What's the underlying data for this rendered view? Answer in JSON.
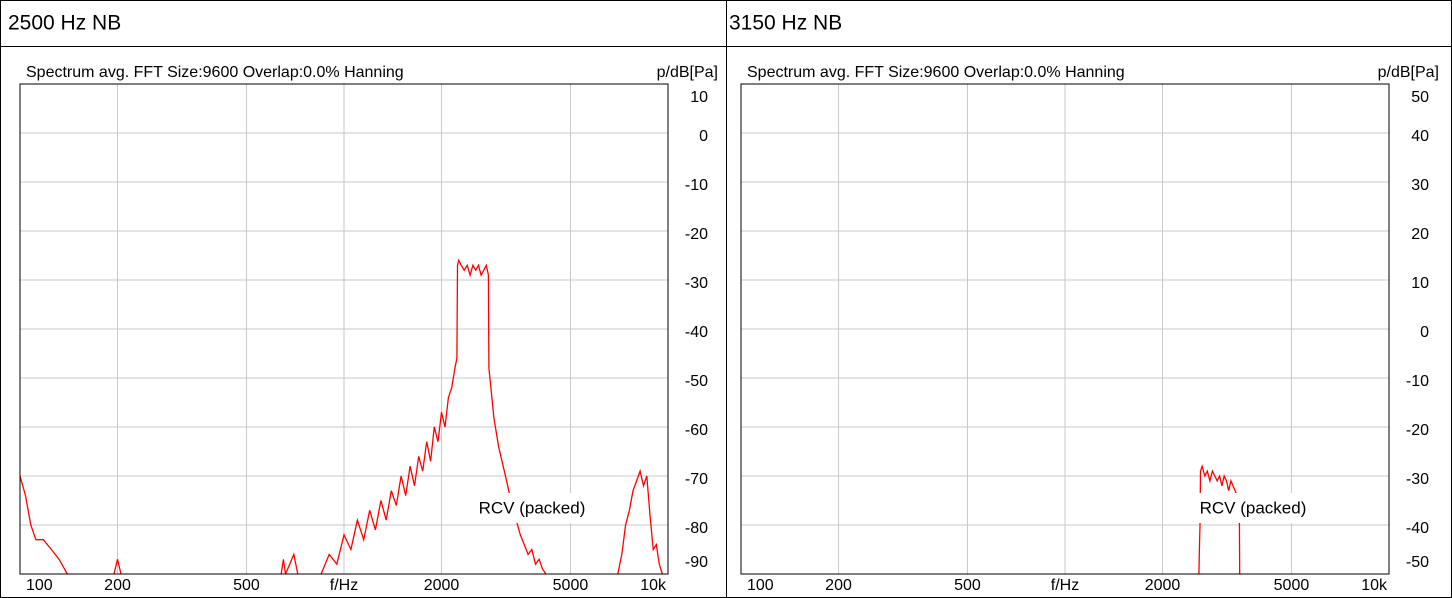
{
  "chart_data": [
    {
      "type": "line",
      "title": "2500 Hz NB",
      "subtitle": "Spectrum avg.  FFT Size:9600  Overlap:0.0%  Hanning",
      "y_label": "p/dB[Pa]",
      "log_x": true,
      "grid": true,
      "xlim": [
        100,
        10000
      ],
      "ylim": [
        -90,
        10
      ],
      "xticks": [
        100,
        200,
        500,
        {
          "value": 1000,
          "label": "f/Hz"
        },
        2000,
        5000,
        {
          "value": 10000,
          "label": "10k"
        }
      ],
      "yticks": [
        10,
        0,
        -10,
        -20,
        -30,
        -40,
        -50,
        -60,
        -70,
        -80,
        -90
      ],
      "x": [
        100,
        104,
        108,
        112,
        118,
        125,
        132,
        140,
        170,
        195,
        200,
        205,
        300,
        640,
        650,
        660,
        680,
        700,
        720,
        780,
        850,
        900,
        950,
        1000,
        1050,
        1100,
        1150,
        1200,
        1250,
        1300,
        1350,
        1400,
        1450,
        1500,
        1550,
        1600,
        1650,
        1700,
        1750,
        1800,
        1850,
        1900,
        1950,
        2000,
        2050,
        2100,
        2150,
        2200,
        2230,
        2240,
        2260,
        2300,
        2350,
        2400,
        2450,
        2500,
        2550,
        2600,
        2650,
        2700,
        2750,
        2790,
        2800,
        2850,
        2900,
        2950,
        3000,
        3100,
        3200,
        3300,
        3400,
        3500,
        3600,
        3700,
        3800,
        3900,
        4000,
        4100,
        4200,
        5000,
        7000,
        7200,
        7400,
        7600,
        7800,
        8000,
        8200,
        8400,
        8600,
        8800,
        9000,
        9200,
        9400,
        9600
      ],
      "series": [
        {
          "name": "RCV (packed)",
          "color": "#ff0000",
          "values": [
            -70,
            -74,
            -80,
            -83,
            -83,
            -85,
            -87,
            -90,
            null,
            -90,
            -87,
            -90,
            null,
            -90,
            -87,
            -90,
            -88,
            -86,
            -90,
            null,
            -90,
            -86,
            -88,
            -82,
            -85,
            -79,
            -83,
            -77,
            -81,
            -75,
            -79,
            -73,
            -76,
            -70,
            -74,
            -68,
            -72,
            -66,
            -69,
            -63,
            -67,
            -60,
            -63,
            -57,
            -60,
            -54,
            -52,
            -48,
            -46,
            -27,
            -26,
            -27,
            -28,
            -27,
            -29,
            -27,
            -28,
            -27,
            -29,
            -28,
            -27,
            -29,
            -48,
            -53,
            -58,
            -61,
            -64,
            -68,
            -72,
            -76,
            -79,
            -82,
            -84,
            -86,
            -85,
            -88,
            -87,
            -89,
            -90,
            null,
            -90,
            -86,
            -80,
            -77,
            -73,
            -71,
            -69,
            -72,
            -70,
            -78,
            -85,
            -84,
            -88,
            -90
          ]
        }
      ]
    },
    {
      "type": "line",
      "title": "3150 Hz NB",
      "subtitle": "Spectrum avg.  FFT Size:9600  Overlap:0.0%  Hanning",
      "y_label": "p/dB[Pa]",
      "log_x": true,
      "grid": true,
      "xlim": [
        100,
        10000
      ],
      "ylim": [
        -50,
        50
      ],
      "xticks": [
        100,
        200,
        500,
        {
          "value": 1000,
          "label": "f/Hz"
        },
        2000,
        5000,
        {
          "value": 10000,
          "label": "10k"
        }
      ],
      "yticks": [
        50,
        40,
        30,
        20,
        10,
        0,
        -10,
        -20,
        -30,
        -40,
        -50
      ],
      "x": [
        2590,
        2600,
        2610,
        2620,
        2650,
        2700,
        2750,
        2800,
        2850,
        2900,
        2950,
        3000,
        3050,
        3100,
        3150,
        3200,
        3250,
        3300,
        3350,
        3400,
        3450,
        3460
      ],
      "series": [
        {
          "name": "RCV (packed)",
          "color": "#ff0000",
          "values": [
            -50,
            -44,
            -40,
            -29,
            -28,
            -30,
            -29,
            -31,
            -29,
            -30,
            -31,
            -30,
            -32,
            -30,
            -31,
            -33,
            -31,
            -32,
            -33,
            -34,
            -36,
            -50
          ]
        }
      ]
    }
  ]
}
